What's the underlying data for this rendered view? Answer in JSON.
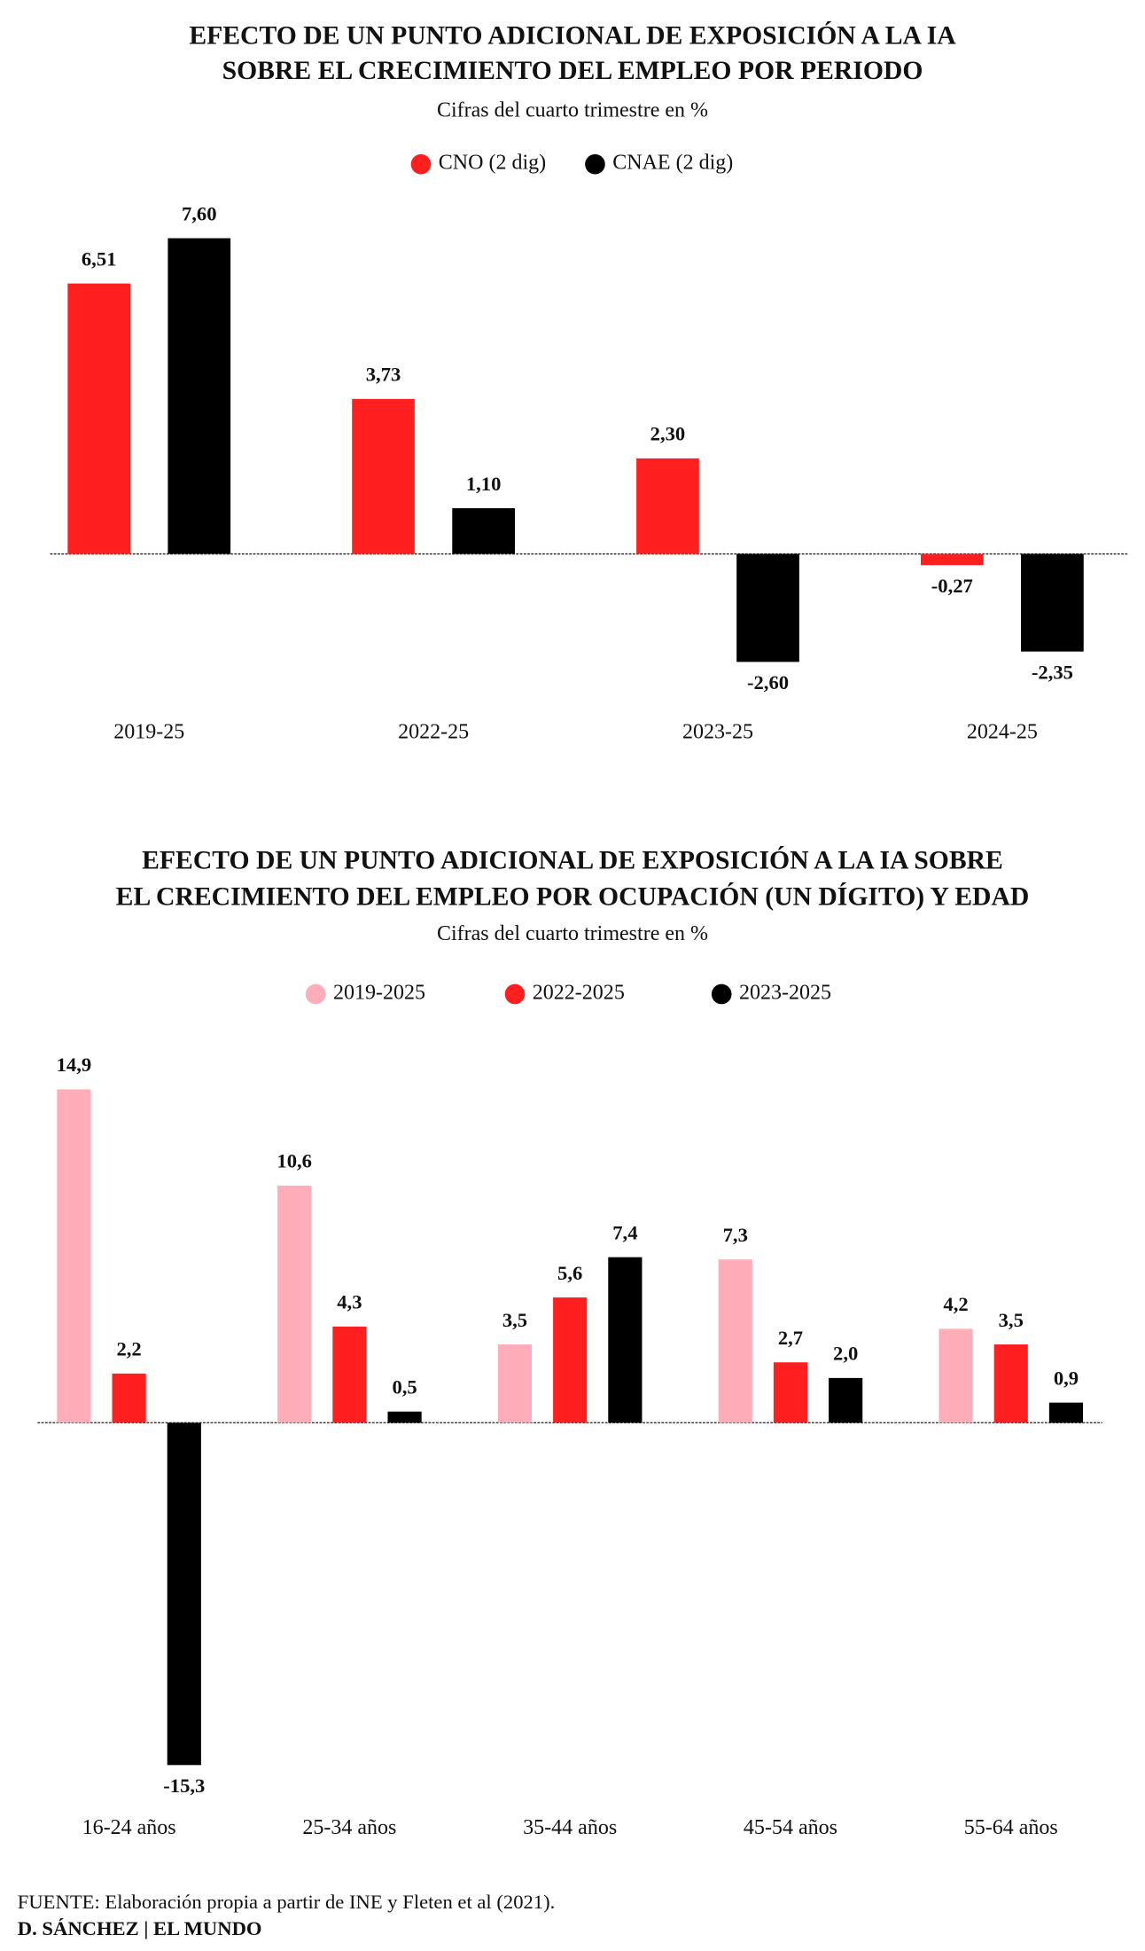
{
  "chart_data": [
    {
      "type": "bar",
      "title": [
        "EFECTO DE UN PUNTO ADICIONAL DE EXPOSICIÓN A LA IA",
        "SOBRE EL CRECIMIENTO DEL EMPLEO POR PERIODO"
      ],
      "subtitle": "Cifras del cuarto trimestre en %",
      "categories": [
        "2019-25",
        "2022-25",
        "2023-25",
        "2024-25"
      ],
      "series": [
        {
          "name": "CNO (2 dig)",
          "color": "#ff1f1f",
          "values": [
            6.51,
            3.73,
            2.3,
            -0.27
          ],
          "value_labels": [
            "6,51",
            "3,73",
            "2,30",
            "-0,27"
          ]
        },
        {
          "name": "CNAE (2 dig)",
          "color": "#000000",
          "values": [
            7.6,
            1.1,
            -2.6,
            -2.35
          ],
          "value_labels": [
            "7,60",
            "1,10",
            "-2,60",
            "-2,35"
          ]
        }
      ]
    },
    {
      "type": "bar",
      "title": [
        "EFECTO DE UN PUNTO ADICIONAL DE EXPOSICIÓN A LA IA SOBRE",
        "EL CRECIMIENTO DEL EMPLEO POR OCUPACIÓN (UN DÍGITO) Y EDAD"
      ],
      "subtitle": "Cifras del cuarto trimestre en %",
      "categories": [
        "16-24 años",
        "25-34 años",
        "35-44 años",
        "45-54 años",
        "55-64 años"
      ],
      "series": [
        {
          "name": "2019-2025",
          "color": "#ffadb9",
          "values": [
            14.9,
            10.6,
            3.5,
            7.3,
            4.2
          ],
          "value_labels": [
            "14,9",
            "10,6",
            "3,5",
            "7,3",
            "4,2"
          ]
        },
        {
          "name": "2022-2025",
          "color": "#ff1f1f",
          "values": [
            2.2,
            4.3,
            5.6,
            2.7,
            3.5
          ],
          "value_labels": [
            "2,2",
            "4,3",
            "5,6",
            "2,7",
            "3,5"
          ]
        },
        {
          "name": "2023-2025",
          "color": "#000000",
          "values": [
            -15.3,
            0.5,
            7.4,
            2.0,
            0.9
          ],
          "value_labels": [
            "-15,3",
            "0,5",
            "7,4",
            "2,0",
            "0,9"
          ]
        }
      ]
    }
  ],
  "footer": {
    "source_label": "FUENTE:",
    "source": "Elaboración propia a partir de INE y Fleten et al (2021).",
    "credit": "D. SÁNCHEZ | EL MUNDO"
  }
}
